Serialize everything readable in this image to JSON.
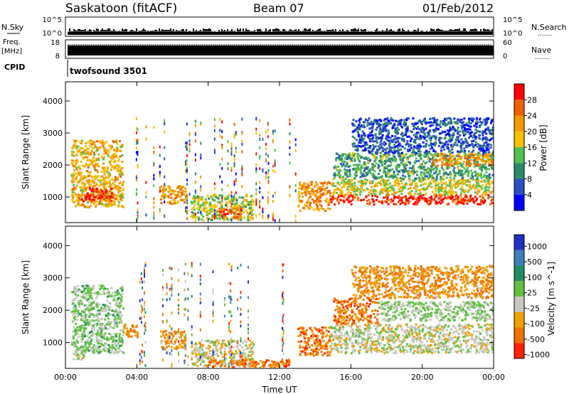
{
  "header": {
    "title": "Saskatoon (fitACF)",
    "beam": "Beam 07",
    "date": "01/Feb/2012"
  },
  "side_labels": {
    "nsky": "N.Sky",
    "freq": "Freq.",
    "freq_unit": "[MHz]",
    "cpid": "CPID",
    "nsearch": "N.Search",
    "nave": "Nave",
    "dots": "......."
  },
  "cpid_text": "twofsound 3501",
  "noise_panel": {
    "left_ticks": [
      "10^5",
      "10^0"
    ],
    "right_ticks": [
      "10^5",
      "10^0"
    ]
  },
  "freq_panel": {
    "left_ticks": [
      "18",
      "8"
    ],
    "right_ticks": [
      "60",
      "0"
    ]
  },
  "colors": {
    "power": [
      "#0000ff",
      "#2a4fc0",
      "#2b8a6a",
      "#50c050",
      "#f7c000",
      "#f59a00",
      "#f06000",
      "#ff0000"
    ],
    "velocity": [
      "#2030c0",
      "#3f7fb8",
      "#208a60",
      "#60c040",
      "#c8c8c0",
      "#f0a000",
      "#f07000",
      "#ff2000"
    ],
    "bar": "#000000"
  },
  "chart_data": [
    {
      "type": "heatmap",
      "panel": "power",
      "xlabel": "",
      "ylabel": "Slant Range [km]",
      "yticks": [
        "1000",
        "2000",
        "3000",
        "4000"
      ],
      "ylim": [
        200,
        4600
      ],
      "xlim": [
        0,
        24
      ],
      "colorbar_label": "Power [dB]",
      "colorbar_ticks": [
        "4",
        "8",
        "12",
        "16",
        "20",
        "24",
        "28"
      ],
      "regions": [
        {
          "t0": 0.3,
          "t1": 3.2,
          "r0": 700,
          "r1": 2800,
          "v": 0.65
        },
        {
          "t0": 0.8,
          "t1": 2.6,
          "r0": 900,
          "r1": 1300,
          "v": 0.95
        },
        {
          "t0": 5.3,
          "t1": 6.7,
          "r0": 800,
          "r1": 1400,
          "v": 0.7
        },
        {
          "t0": 7.0,
          "t1": 10.5,
          "r0": 300,
          "r1": 1100,
          "v": 0.5
        },
        {
          "t0": 8.5,
          "t1": 9.8,
          "r0": 350,
          "r1": 700,
          "v": 0.85
        },
        {
          "t0": 13.0,
          "t1": 14.8,
          "r0": 600,
          "r1": 1500,
          "v": 0.75
        },
        {
          "t0": 14.8,
          "t1": 24.0,
          "r0": 800,
          "r1": 1100,
          "v": 0.95
        },
        {
          "t0": 14.8,
          "t1": 24.0,
          "r0": 1100,
          "r1": 1600,
          "v": 0.55
        },
        {
          "t0": 15.0,
          "t1": 24.0,
          "r0": 1600,
          "r1": 2400,
          "v": 0.35
        },
        {
          "t0": 20.5,
          "t1": 24.0,
          "r0": 2000,
          "r1": 2400,
          "v": 0.75
        },
        {
          "t0": 16.0,
          "t1": 24.0,
          "r0": 2400,
          "r1": 3500,
          "v": 0.15
        }
      ]
    },
    {
      "type": "heatmap",
      "panel": "velocity",
      "xlabel": "Time UT",
      "ylabel": "Slant Range [km]",
      "xticks": [
        "00:00",
        "04:00",
        "08:00",
        "12:00",
        "16:00",
        "20:00",
        "00:00"
      ],
      "yticks": [
        "1000",
        "2000",
        "3000",
        "4000"
      ],
      "ylim": [
        200,
        4600
      ],
      "xlim": [
        0,
        24
      ],
      "colorbar_label": "Velocity [m s^-1]",
      "colorbar_ticks": [
        "1000",
        "500",
        "100",
        "25",
        "-25",
        "-100",
        "-500",
        "-1000"
      ],
      "regions": [
        {
          "t0": 0.3,
          "t1": 3.2,
          "r0": 700,
          "r1": 2800,
          "v": 3.3
        },
        {
          "t0": 0.4,
          "t1": 1.0,
          "r0": 500,
          "r1": 800,
          "v": 4.0
        },
        {
          "t0": 3.2,
          "t1": 4.0,
          "r0": 1200,
          "r1": 1600,
          "v": 5.5
        },
        {
          "t0": 5.3,
          "t1": 6.7,
          "r0": 800,
          "r1": 1400,
          "v": 5.3
        },
        {
          "t0": 7.0,
          "t1": 10.5,
          "r0": 300,
          "r1": 1100,
          "v": 4.2
        },
        {
          "t0": 8.0,
          "t1": 12.5,
          "r0": 250,
          "r1": 500,
          "v": 5.8
        },
        {
          "t0": 13.0,
          "t1": 14.8,
          "r0": 600,
          "r1": 1500,
          "v": 5.9
        },
        {
          "t0": 14.8,
          "t1": 24.0,
          "r0": 700,
          "r1": 1600,
          "v": 4.0
        },
        {
          "t0": 15.0,
          "t1": 17.5,
          "r0": 1600,
          "r1": 2400,
          "v": 5.8
        },
        {
          "t0": 17.5,
          "t1": 24.0,
          "r0": 1700,
          "r1": 2300,
          "v": 3.5
        },
        {
          "t0": 16.0,
          "t1": 24.0,
          "r0": 2400,
          "r1": 3400,
          "v": 5.4
        }
      ]
    }
  ]
}
